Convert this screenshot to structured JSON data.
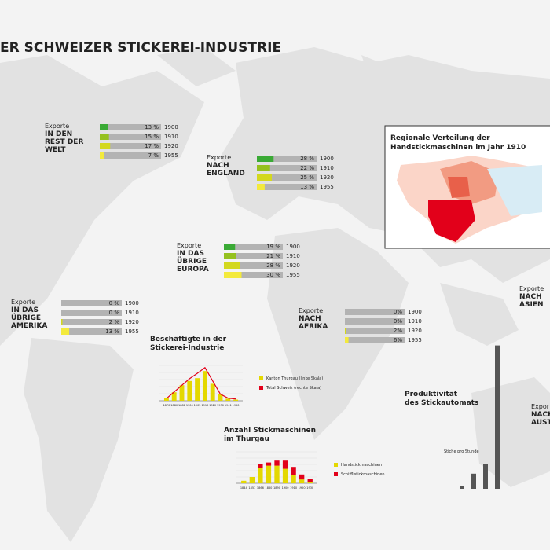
{
  "title": "ER SCHWEIZER STICKEREI-INDUSTRIE",
  "year_colors": [
    "#3aaa35",
    "#95c11f",
    "#d3d81e",
    "#f3ea3c"
  ],
  "exports": [
    {
      "label": "Exporte",
      "destination": [
        "IN DEN",
        "REST DER",
        "WELT"
      ],
      "rows": [
        {
          "year": "1900",
          "value": 13,
          "value_label": "13 %"
        },
        {
          "year": "1910",
          "value": 15,
          "value_label": "15 %"
        },
        {
          "year": "1920",
          "value": 17,
          "value_label": "17 %"
        },
        {
          "year": "1955",
          "value": 7,
          "value_label": "7 %"
        }
      ]
    },
    {
      "label": "Exporte",
      "destination": [
        "NACH",
        "ENGLAND"
      ],
      "rows": [
        {
          "year": "1900",
          "value": 28,
          "value_label": "28 %"
        },
        {
          "year": "1910",
          "value": 22,
          "value_label": "22 %"
        },
        {
          "year": "1920",
          "value": 25,
          "value_label": "25 %"
        },
        {
          "year": "1955",
          "value": 13,
          "value_label": "13 %"
        }
      ]
    },
    {
      "label": "Exporte",
      "destination": [
        "IN DAS",
        "ÜBRIGE",
        "EUROPA"
      ],
      "rows": [
        {
          "year": "1900",
          "value": 19,
          "value_label": "19 %"
        },
        {
          "year": "1910",
          "value": 21,
          "value_label": "21 %"
        },
        {
          "year": "1920",
          "value": 28,
          "value_label": "28 %"
        },
        {
          "year": "1955",
          "value": 30,
          "value_label": "30 %"
        }
      ]
    },
    {
      "label": "Exporte",
      "destination": [
        "IN DAS",
        "ÜBRIGE",
        "AMERIKA"
      ],
      "rows": [
        {
          "year": "1900",
          "value": 0,
          "value_label": "0 %"
        },
        {
          "year": "1910",
          "value": 0,
          "value_label": "0 %"
        },
        {
          "year": "1920",
          "value": 2,
          "value_label": "2 %"
        },
        {
          "year": "1955",
          "value": 13,
          "value_label": "13 %"
        }
      ]
    },
    {
      "label": "Exporte",
      "destination": [
        "NACH",
        "AFRIKA"
      ],
      "rows": [
        {
          "year": "1900",
          "value": 0,
          "value_label": "0%"
        },
        {
          "year": "1910",
          "value": 0,
          "value_label": "0%"
        },
        {
          "year": "1920",
          "value": 2,
          "value_label": "2%"
        },
        {
          "year": "1955",
          "value": 6,
          "value_label": "6%"
        }
      ]
    }
  ],
  "partial_exports": [
    {
      "label": "Exporte",
      "destination": [
        "NACH",
        "ASIEN"
      ]
    },
    {
      "label": "Expor",
      "destination": [
        "NACH",
        "AUST"
      ]
    }
  ],
  "regional_map": {
    "title": [
      "Regionale Verteilung der",
      "Handstickmaschinen im Jahr 1910"
    ]
  },
  "charts": [
    {
      "type": "bar_line",
      "title": [
        "Beschäftigte in der",
        "Stickerei-Industrie"
      ],
      "categories": [
        "1870",
        "1880",
        "1888",
        "1900",
        "1905",
        "1910",
        "1920",
        "1930",
        "1941",
        "1950"
      ],
      "ylim": [
        0,
        25000
      ],
      "y2lim": [
        0,
        80000
      ],
      "series": [
        {
          "name": "Kanton Thurgau (linke Skala)",
          "color": "#e4d800",
          "values": [
            2000,
            6000,
            11000,
            14000,
            16000,
            21000,
            12000,
            5000,
            1500,
            800
          ]
        },
        {
          "name": "Total Schweiz (rechte Skala)",
          "color": "#e2001a",
          "axis": "y2",
          "values": [
            5000,
            20000,
            35000,
            50000,
            62000,
            75000,
            45000,
            15000,
            6000,
            4000
          ]
        }
      ]
    },
    {
      "type": "stacked_bar",
      "title": [
        "Anzahl Stickmaschinen",
        "im Thurgau"
      ],
      "categories": [
        "1844",
        "1857",
        "1866",
        "1880",
        "1890",
        "1900",
        "1910",
        "1920",
        "1930"
      ],
      "ylim": [
        0,
        2500
      ],
      "series": [
        {
          "name": "Handstickmaschinen",
          "color": "#e4d800",
          "values": [
            200,
            500,
            1250,
            1400,
            1400,
            1150,
            650,
            300,
            120
          ]
        },
        {
          "name": "Schifflistickmaschinen",
          "color": "#e2001a",
          "values": [
            0,
            0,
            300,
            250,
            400,
            650,
            650,
            400,
            200
          ]
        }
      ]
    },
    {
      "type": "bar",
      "title": [
        "Produktivität",
        "des Stickautomats"
      ],
      "axis_label": "Stiche pro Stunde",
      "ylim": [
        0,
        60000
      ],
      "values": [
        1000,
        6000,
        10000,
        57000
      ],
      "color": "#555555"
    }
  ]
}
